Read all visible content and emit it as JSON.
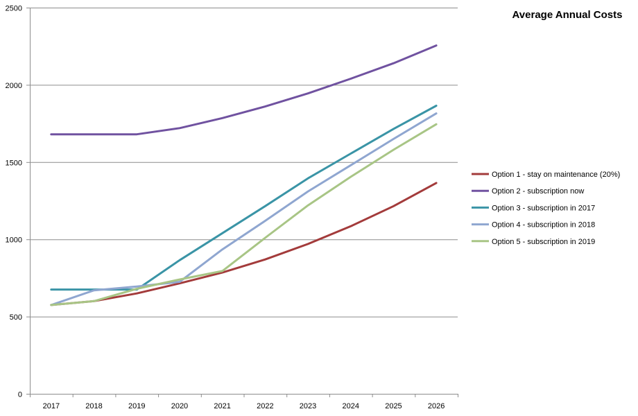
{
  "chart_data": {
    "type": "line",
    "title": "Average Annual Costs",
    "xlabel": "",
    "ylabel": "",
    "categories": [
      "2017",
      "2018",
      "2019",
      "2020",
      "2021",
      "2022",
      "2023",
      "2024",
      "2025",
      "2026"
    ],
    "ylim": [
      0,
      2500
    ],
    "yticks": [
      0,
      500,
      1000,
      1500,
      2000,
      2500
    ],
    "grid": true,
    "legend_position": "right",
    "series": [
      {
        "name": "Option 1 - stay on maintenance (20%)",
        "color": "#a33b3b",
        "values": [
          575,
          600,
          650,
          715,
          785,
          870,
          970,
          1085,
          1215,
          1365
        ]
      },
      {
        "name": "Option 2 - subscription now",
        "color": "#7052a0",
        "values": [
          1680,
          1680,
          1680,
          1720,
          1785,
          1860,
          1945,
          2040,
          2140,
          2255
        ]
      },
      {
        "name": "Option 3 - subscription in 2017",
        "color": "#3a94a6",
        "values": [
          675,
          675,
          675,
          865,
          1040,
          1215,
          1395,
          1555,
          1715,
          1865
        ]
      },
      {
        "name": "Option 4 - subscription in 2018",
        "color": "#8fa6d0",
        "values": [
          575,
          670,
          695,
          725,
          935,
          1120,
          1310,
          1480,
          1650,
          1815
        ]
      },
      {
        "name": "Option 5 - subscription in 2019",
        "color": "#a8c585",
        "values": [
          575,
          600,
          680,
          740,
          795,
          1010,
          1220,
          1405,
          1580,
          1745
        ]
      }
    ]
  }
}
